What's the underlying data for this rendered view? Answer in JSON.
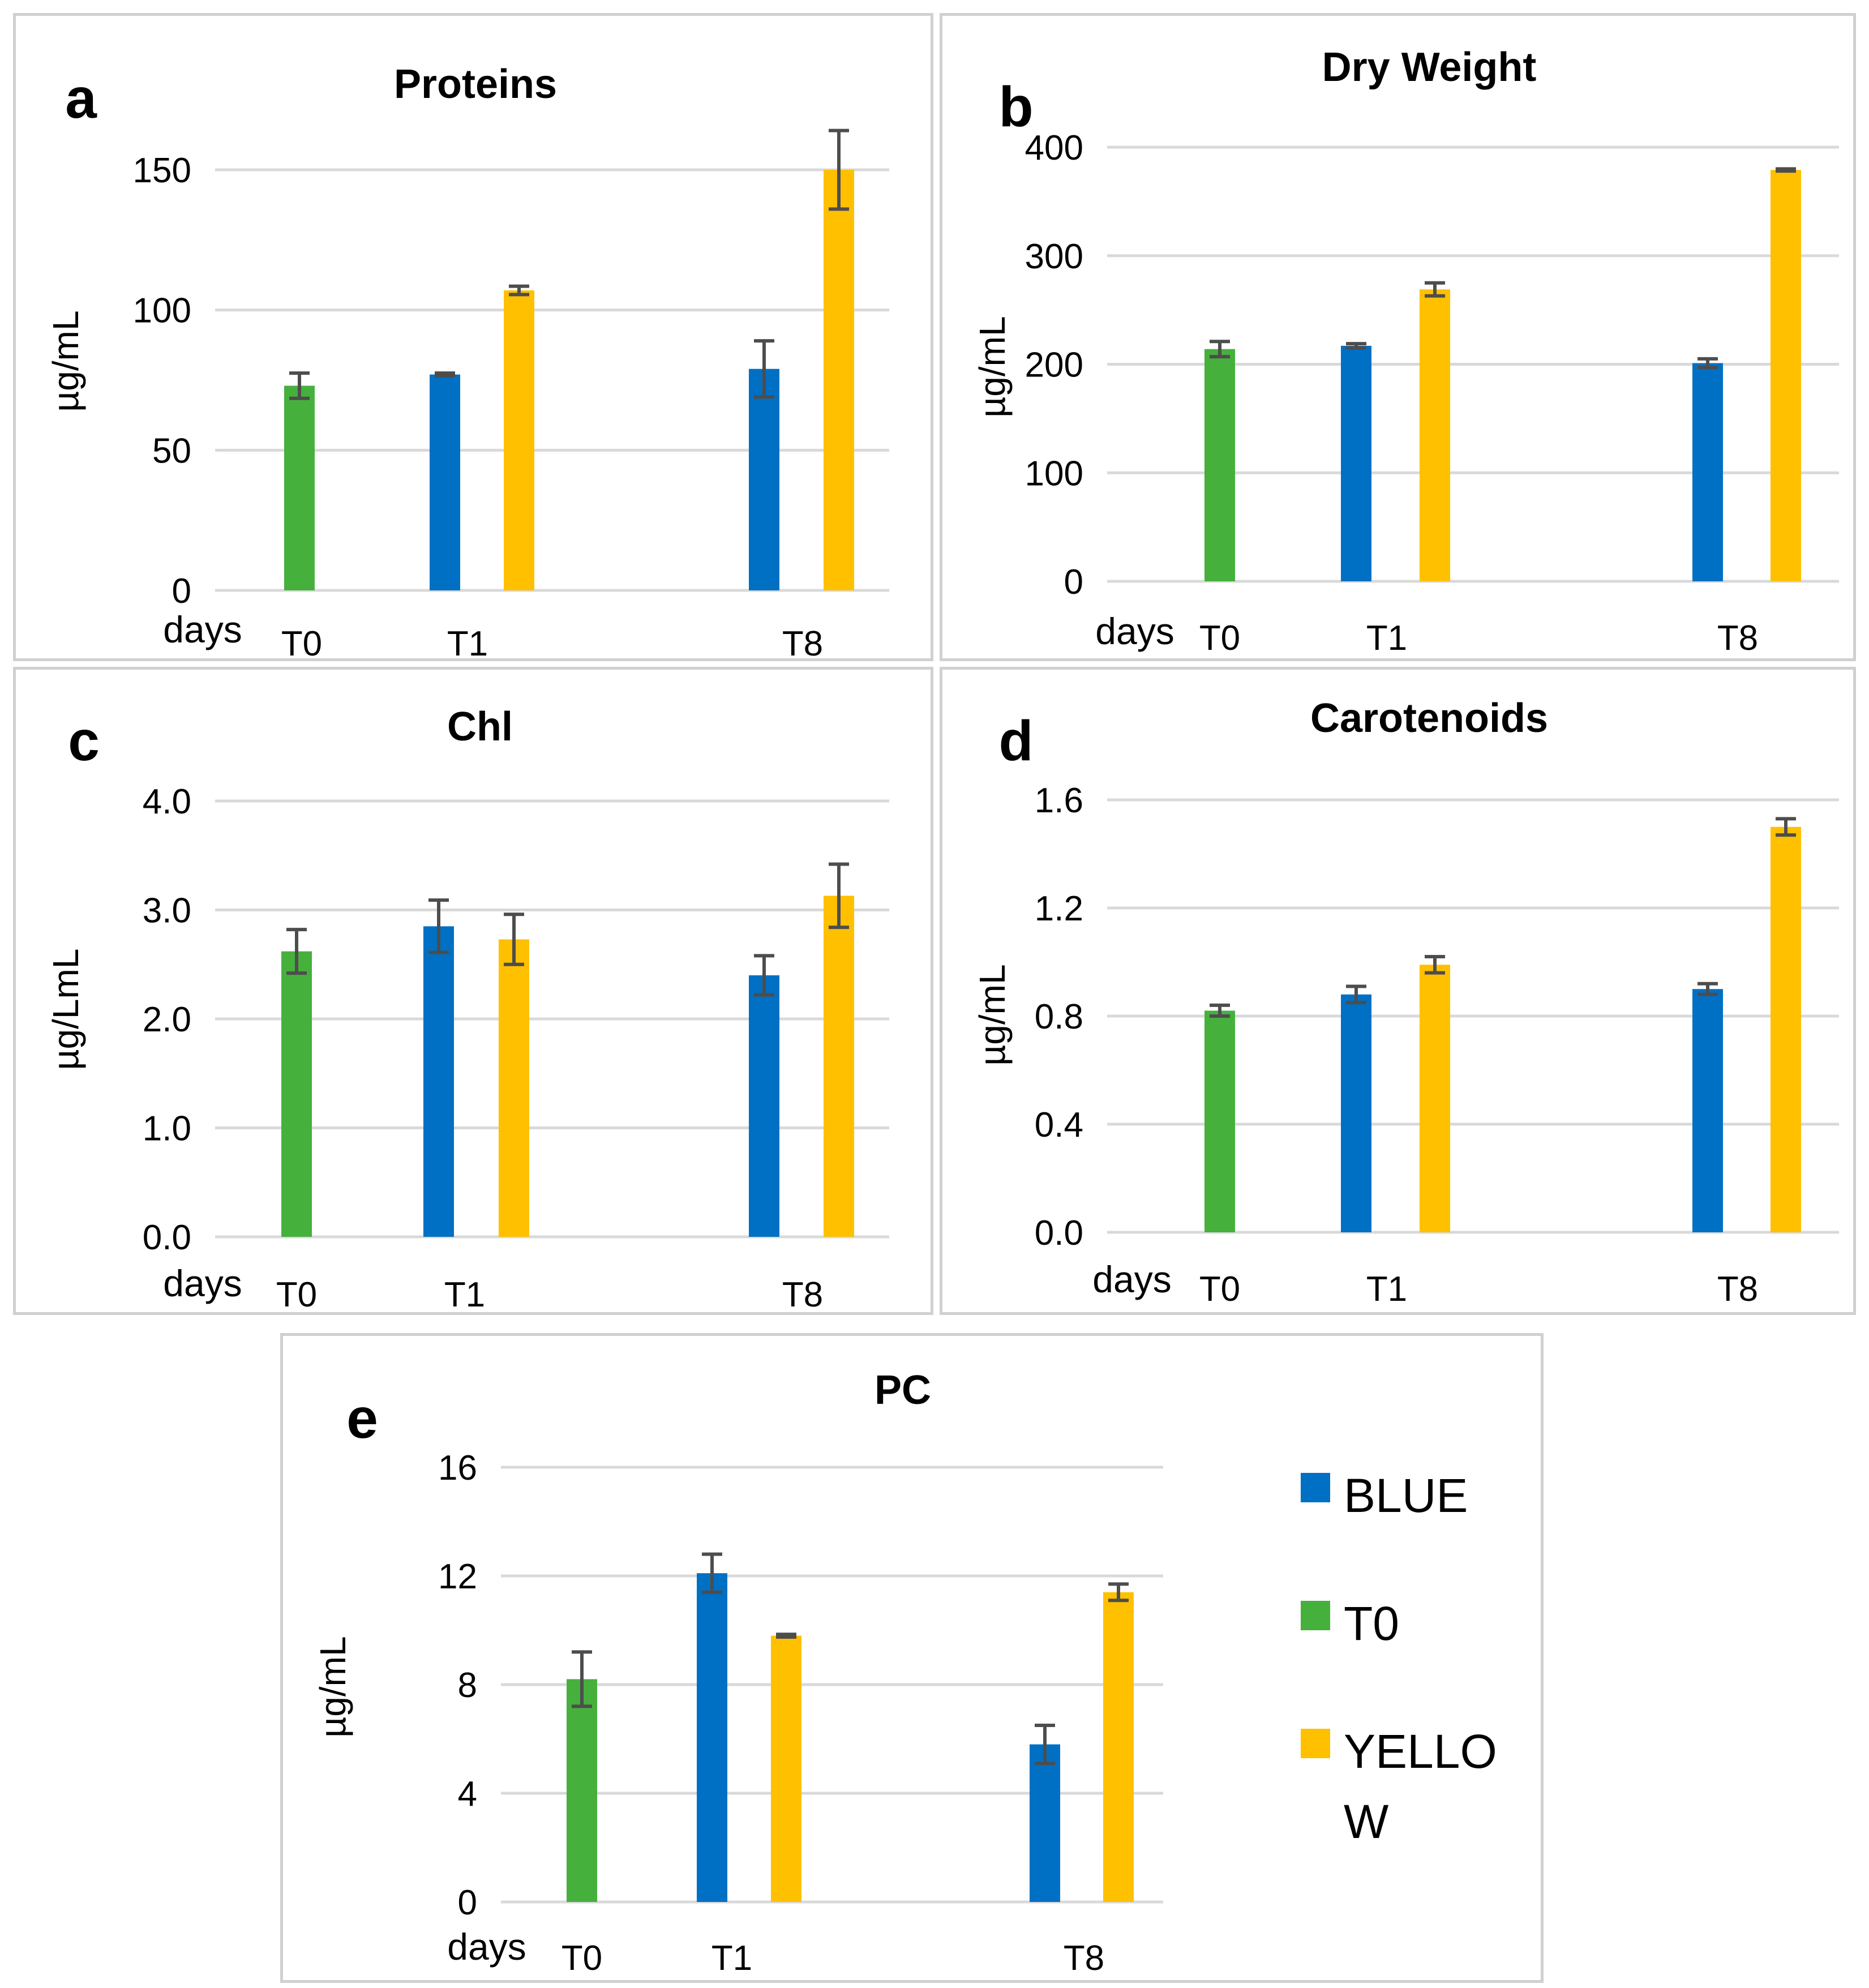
{
  "colors": {
    "T0": "#46b03d",
    "BLUE": "#0070c4",
    "YELLOW": "#ffc000",
    "error": "#4d4d4d",
    "grid": "#d9d9d9"
  },
  "legend": [
    {
      "key": "BLUE",
      "label": "BLUE"
    },
    {
      "key": "T0",
      "label": "T0"
    },
    {
      "key": "YELLOW",
      "label": "YELLOW"
    }
  ],
  "chart_data": [
    {
      "panel": "a",
      "type": "bar",
      "title": "Proteins",
      "ylabel": "µg/mL",
      "xlabel": "days",
      "ylim": [
        0,
        150
      ],
      "yticks": [
        "0",
        "50",
        "100",
        "150"
      ],
      "yticks_values": [
        0,
        50,
        100,
        150
      ],
      "categories": [
        "T0",
        "T1",
        "T8"
      ],
      "series": [
        {
          "name": "T0",
          "values": [
            73,
            null,
            null
          ],
          "errors": [
            4.5,
            null,
            null
          ]
        },
        {
          "name": "BLUE",
          "values": [
            null,
            77,
            79
          ],
          "errors": [
            null,
            0.5,
            10
          ]
        },
        {
          "name": "YELLOW",
          "values": [
            null,
            107,
            150
          ],
          "errors": [
            null,
            1.5,
            14
          ]
        }
      ]
    },
    {
      "panel": "b",
      "type": "bar",
      "title": "Dry Weight",
      "ylabel": "µg/mL",
      "xlabel": "days",
      "ylim": [
        0,
        400
      ],
      "yticks": [
        "0",
        "100",
        "200",
        "300",
        "400"
      ],
      "yticks_values": [
        0,
        100,
        200,
        300,
        400
      ],
      "categories": [
        "T0",
        "T1",
        "T8"
      ],
      "series": [
        {
          "name": "T0",
          "values": [
            214,
            null,
            null
          ],
          "errors": [
            7,
            null,
            null
          ]
        },
        {
          "name": "BLUE",
          "values": [
            null,
            217,
            201
          ],
          "errors": [
            null,
            2,
            4
          ]
        },
        {
          "name": "YELLOW",
          "values": [
            null,
            269,
            379
          ],
          "errors": [
            null,
            6,
            1
          ]
        }
      ]
    },
    {
      "panel": "c",
      "type": "bar",
      "title": "Chl",
      "ylabel": "µg/LmL",
      "xlabel": "days",
      "ylim": [
        0,
        4
      ],
      "yticks": [
        "0.0",
        "1.0",
        "2.0",
        "3.0",
        "4.0"
      ],
      "yticks_values": [
        0,
        1,
        2,
        3,
        4
      ],
      "categories": [
        "T0",
        "T1",
        "T8"
      ],
      "series": [
        {
          "name": "T0",
          "values": [
            2.62,
            null,
            null
          ],
          "errors": [
            0.2,
            null,
            null
          ]
        },
        {
          "name": "BLUE",
          "values": [
            null,
            2.85,
            2.4
          ],
          "errors": [
            null,
            0.24,
            0.18
          ]
        },
        {
          "name": "YELLOW",
          "values": [
            null,
            2.73,
            3.13
          ],
          "errors": [
            null,
            0.23,
            0.29
          ]
        }
      ]
    },
    {
      "panel": "d",
      "type": "bar",
      "title": "Carotenoids",
      "ylabel": "µg/mL",
      "xlabel": "days",
      "ylim": [
        0,
        1.6
      ],
      "yticks": [
        "0.0",
        "0.4",
        "0.8",
        "1.2",
        "1.6"
      ],
      "yticks_values": [
        0,
        0.4,
        0.8,
        1.2,
        1.6
      ],
      "categories": [
        "T0",
        "T1",
        "T8"
      ],
      "series": [
        {
          "name": "T0",
          "values": [
            0.82,
            null,
            null
          ],
          "errors": [
            0.02,
            null,
            null
          ]
        },
        {
          "name": "BLUE",
          "values": [
            null,
            0.88,
            0.9
          ],
          "errors": [
            null,
            0.03,
            0.02
          ]
        },
        {
          "name": "YELLOW",
          "values": [
            null,
            0.99,
            1.5
          ],
          "errors": [
            null,
            0.03,
            0.03
          ]
        }
      ]
    },
    {
      "panel": "e",
      "type": "bar",
      "title": "PC",
      "ylabel": "µg/mL",
      "xlabel": "days",
      "ylim": [
        0,
        16
      ],
      "yticks": [
        "0",
        "4",
        "8",
        "12",
        "16"
      ],
      "yticks_values": [
        0,
        4,
        8,
        12,
        16
      ],
      "categories": [
        "T0",
        "T1",
        "T8"
      ],
      "series": [
        {
          "name": "T0",
          "values": [
            8.2,
            null,
            null
          ],
          "errors": [
            1,
            null,
            null
          ]
        },
        {
          "name": "BLUE",
          "values": [
            null,
            12.1,
            5.8
          ],
          "errors": [
            null,
            0.7,
            0.7
          ]
        },
        {
          "name": "YELLOW",
          "values": [
            null,
            9.8,
            11.4
          ],
          "errors": [
            null,
            0.05,
            0.3
          ]
        }
      ]
    }
  ]
}
